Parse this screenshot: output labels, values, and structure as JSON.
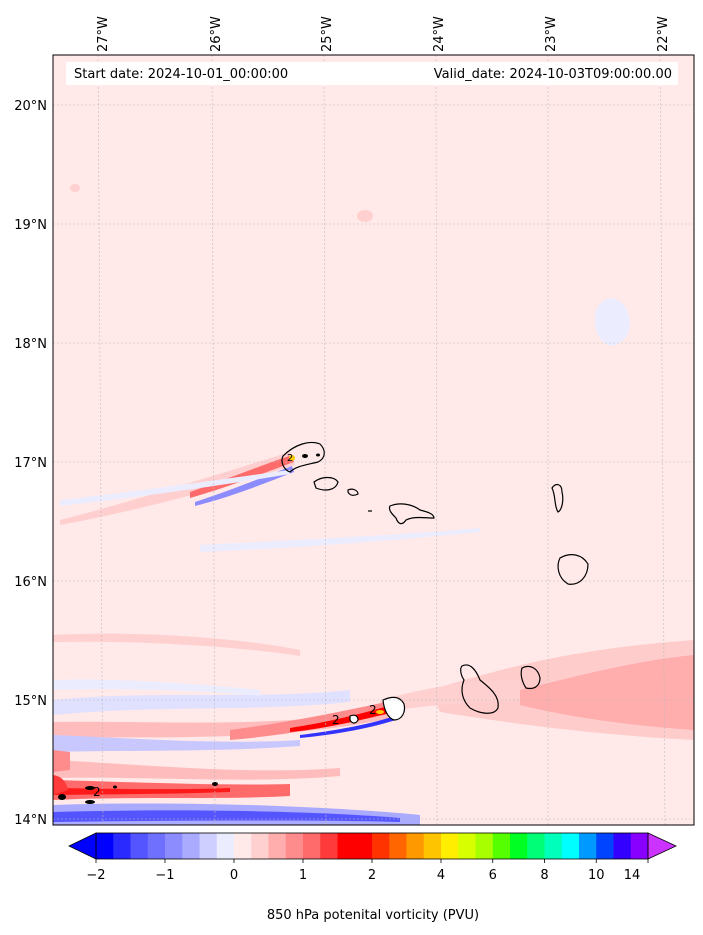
{
  "header": {
    "start_date": "Start date: 2024-10-01_00:00:00",
    "valid_date": "Valid_date: 2024-10-03T09:00:00.00"
  },
  "map": {
    "lon_labels": [
      "27°W",
      "26°W",
      "25°W",
      "24°W",
      "23°W",
      "22°W"
    ],
    "lat_labels": [
      "20°N",
      "19°N",
      "18°N",
      "17°N",
      "16°N",
      "15°N",
      "14°N"
    ],
    "contour_labels": [
      "2",
      "2",
      "2",
      "2"
    ]
  },
  "colorbar": {
    "title": "850 hPa potenital vorticity (PVU)",
    "ticks": [
      "−2",
      "−1",
      "0",
      "1",
      "2",
      "4",
      "6",
      "8",
      "10",
      "14"
    ],
    "colors": [
      "#0000ff",
      "#2a2aff",
      "#5555ff",
      "#7070ff",
      "#8c8cff",
      "#aaaaff",
      "#cfcfff",
      "#ececff",
      "#ffe9e9",
      "#ffd0d0",
      "#ffadad",
      "#ff8c8c",
      "#ff6a6a",
      "#ff3a3a",
      "#ff0000",
      "#ff0000",
      "#ff3300",
      "#ff6600",
      "#ff9900",
      "#ffc400",
      "#ffee00",
      "#d8ff00",
      "#a8ff00",
      "#55ff00",
      "#00ff22",
      "#00ff77",
      "#00ffbb",
      "#00ffff",
      "#0099ff",
      "#0044ff",
      "#3300ff",
      "#8800ff"
    ],
    "over_color": "#cc33ff",
    "under_color": "#0000ff"
  }
}
